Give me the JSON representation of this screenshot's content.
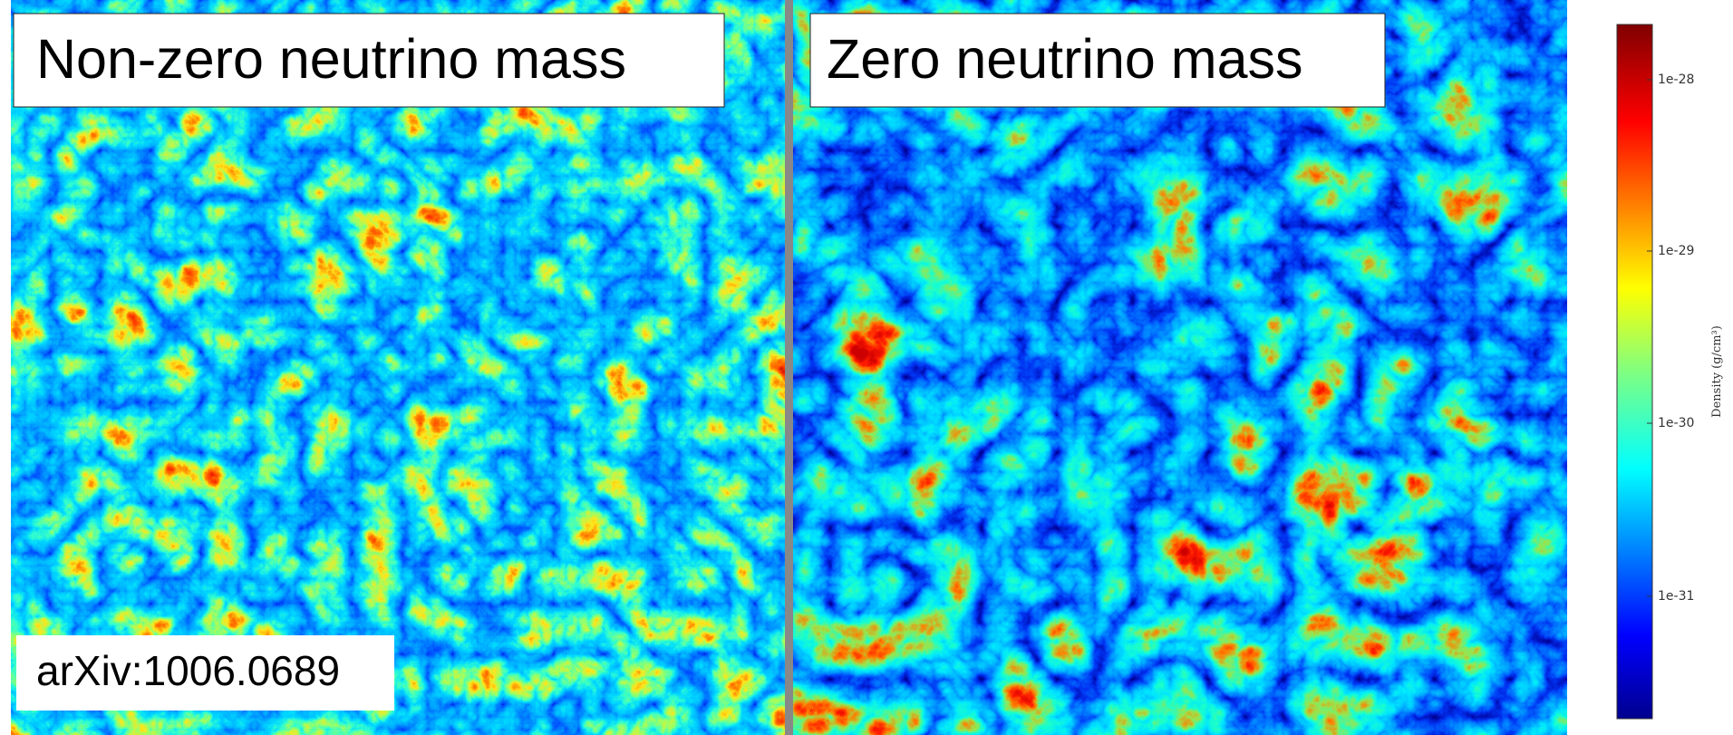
{
  "panels": [
    {
      "label": "Non-zero neutrino mass"
    },
    {
      "label": "Zero neutrino mass"
    }
  ],
  "citation": "arXiv:1006.0689",
  "colorbar": {
    "label": "Density (g/cm³)",
    "ticks": [
      "1e-28",
      "1e-29",
      "1e-30",
      "1e-31"
    ]
  }
}
